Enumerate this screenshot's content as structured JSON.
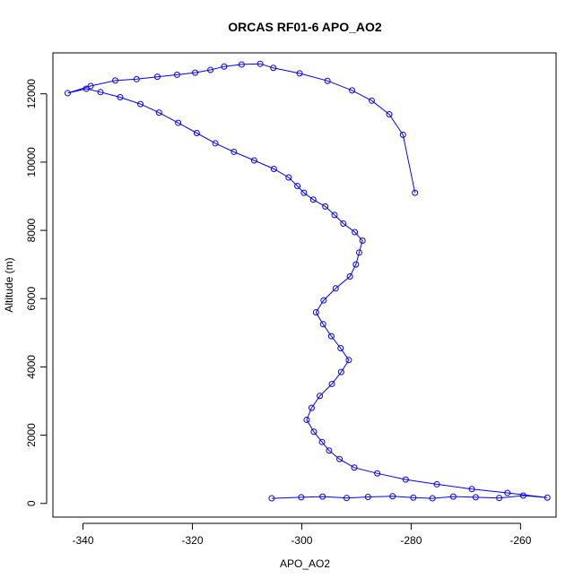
{
  "chart_data": {
    "type": "line",
    "title": "ORCAS RF01-6 APO_AO2",
    "xlabel": "APO_AO2",
    "ylabel": "Altitude (m)",
    "xlim": [
      -345.5,
      -253.5
    ],
    "ylim": [
      -400,
      13200
    ],
    "xticks": [
      -340,
      -320,
      -300,
      -280,
      -260
    ],
    "yticks": [
      0,
      2000,
      4000,
      6000,
      8000,
      10000,
      12000
    ],
    "grid": false,
    "markers": "open-circles",
    "colors": {
      "series": "#0000ff",
      "axis": "#000000"
    },
    "series": [
      {
        "name": "",
        "x": [
          -305.5,
          -300.1,
          -296.2,
          -291.8,
          -287.9,
          -283.4,
          -279.6,
          -276.1,
          -272.3,
          -268.2,
          -263.9,
          -259.5,
          -255.1,
          -262.4,
          -268.9,
          -275.3,
          -281.0,
          -286.2,
          -290.4,
          -293.1,
          -295.0,
          -296.3,
          -297.8,
          -299.1,
          -298.2,
          -296.7,
          -294.5,
          -292.8,
          -291.4,
          -292.9,
          -294.6,
          -296.1,
          -297.4,
          -296.0,
          -293.8,
          -291.2,
          -290.1,
          -289.5,
          -288.9,
          -290.3,
          -292.4,
          -294.0,
          -295.7,
          -297.9,
          -299.6,
          -300.8,
          -302.4,
          -305.1,
          -308.7,
          -312.4,
          -315.8,
          -319.2,
          -322.6,
          -326.1,
          -329.5,
          -333.2,
          -336.8,
          -339.4,
          -342.8,
          -338.6,
          -334.1,
          -330.2,
          -326.4,
          -322.8,
          -319.5,
          -316.7,
          -314.2,
          -311.0,
          -307.6,
          -305.2,
          -300.4,
          -295.3,
          -290.8,
          -287.2,
          -284.0,
          -281.5,
          -279.3
        ],
        "y": [
          150,
          180,
          200,
          160,
          190,
          210,
          170,
          150,
          200,
          180,
          160,
          230,
          170,
          310,
          420,
          560,
          700,
          880,
          1050,
          1300,
          1550,
          1800,
          2100,
          2450,
          2800,
          3150,
          3500,
          3850,
          4200,
          4550,
          4900,
          5250,
          5600,
          5950,
          6300,
          6650,
          7000,
          7350,
          7700,
          7950,
          8200,
          8450,
          8700,
          8900,
          9100,
          9300,
          9550,
          9800,
          10050,
          10300,
          10550,
          10850,
          11150,
          11450,
          11700,
          11900,
          12050,
          12150,
          12020,
          12230,
          12390,
          12430,
          12500,
          12560,
          12620,
          12700,
          12800,
          12860,
          12880,
          12760,
          12600,
          12380,
          12100,
          11800,
          11400,
          10800,
          9100
        ]
      }
    ]
  }
}
